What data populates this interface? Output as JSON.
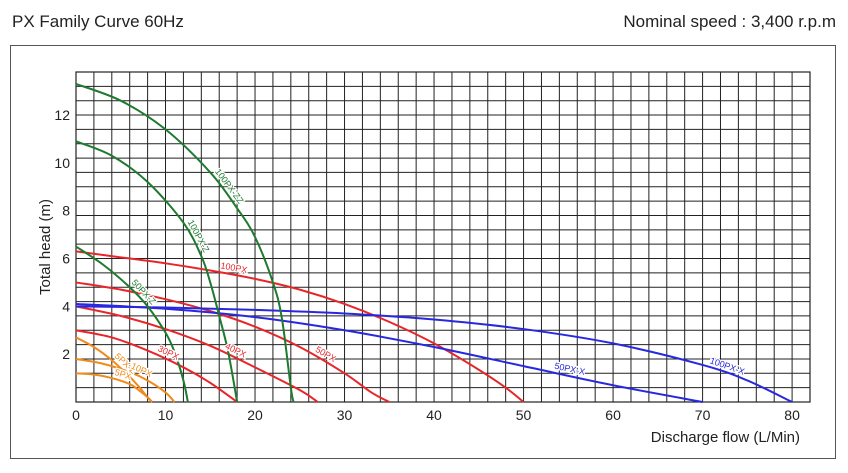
{
  "header": {
    "title": "PX Family Curve 60Hz",
    "speed": "Nominal speed : 3,400 r.p.m"
  },
  "chart_data": {
    "type": "line",
    "title": "PX Family Curve 60Hz",
    "subtitle": "Nominal speed : 3,400 r.p.m",
    "xlabel": "Discharge flow (L/Min)",
    "ylabel": "Total head (m)",
    "xlim": [
      0,
      82
    ],
    "ylim": [
      0,
      13.8
    ],
    "xticks": [
      "0",
      "10",
      "20",
      "30",
      "40",
      "50",
      "60",
      "70",
      "80"
    ],
    "yticks": [
      "2",
      "4",
      "6",
      "8",
      "10",
      "12"
    ],
    "grid": true,
    "series": [
      {
        "name": "5PX",
        "color": "#f08a1c",
        "points": [
          [
            0,
            1.2
          ],
          [
            2,
            1.15
          ],
          [
            4,
            1.0
          ],
          [
            6,
            0.75
          ],
          [
            7,
            0.5
          ],
          [
            8,
            0.2
          ],
          [
            8.5,
            0
          ]
        ]
      },
      {
        "name": "5PX-Z",
        "color": "#f08a1c",
        "points": [
          [
            0,
            2.7
          ],
          [
            2,
            2.3
          ],
          [
            4,
            1.75
          ],
          [
            6,
            1.05
          ],
          [
            7,
            0.65
          ],
          [
            8,
            0.2
          ],
          [
            8.5,
            0
          ]
        ]
      },
      {
        "name": "10PX",
        "color": "#f08a1c",
        "points": [
          [
            0,
            1.8
          ],
          [
            3,
            1.6
          ],
          [
            6,
            1.25
          ],
          [
            8,
            0.9
          ],
          [
            10,
            0.4
          ],
          [
            11,
            0
          ]
        ]
      },
      {
        "name": "30PX",
        "color": "#e8262a",
        "points": [
          [
            0,
            3.0
          ],
          [
            4,
            2.7
          ],
          [
            8,
            2.15
          ],
          [
            12,
            1.45
          ],
          [
            15,
            0.8
          ],
          [
            18,
            0
          ]
        ]
      },
      {
        "name": "40PX",
        "color": "#e8262a",
        "points": [
          [
            0,
            4.0
          ],
          [
            5,
            3.6
          ],
          [
            10,
            3.05
          ],
          [
            15,
            2.35
          ],
          [
            20,
            1.45
          ],
          [
            25,
            0.5
          ],
          [
            27,
            0
          ]
        ]
      },
      {
        "name": "50PX",
        "color": "#e8262a",
        "points": [
          [
            0,
            5.0
          ],
          [
            5,
            4.7
          ],
          [
            10,
            4.3
          ],
          [
            15,
            3.8
          ],
          [
            20,
            3.15
          ],
          [
            25,
            2.3
          ],
          [
            30,
            1.2
          ],
          [
            33,
            0.4
          ],
          [
            35,
            0
          ]
        ]
      },
      {
        "name": "100PX",
        "color": "#e8262a",
        "points": [
          [
            0,
            6.3
          ],
          [
            5,
            6.05
          ],
          [
            10,
            5.8
          ],
          [
            15,
            5.5
          ],
          [
            20,
            5.15
          ],
          [
            25,
            4.7
          ],
          [
            30,
            4.1
          ],
          [
            35,
            3.35
          ],
          [
            40,
            2.45
          ],
          [
            45,
            1.35
          ],
          [
            48,
            0.6
          ],
          [
            50,
            0
          ]
        ]
      },
      {
        "name": "50PX-X",
        "color": "#2828e0",
        "points": [
          [
            0,
            4.1
          ],
          [
            10,
            3.9
          ],
          [
            20,
            3.55
          ],
          [
            30,
            3.0
          ],
          [
            40,
            2.3
          ],
          [
            50,
            1.5
          ],
          [
            60,
            0.7
          ],
          [
            70,
            0
          ]
        ]
      },
      {
        "name": "100PX-X",
        "color": "#2828e0",
        "points": [
          [
            0,
            4.0
          ],
          [
            10,
            3.95
          ],
          [
            20,
            3.85
          ],
          [
            30,
            3.7
          ],
          [
            40,
            3.45
          ],
          [
            50,
            3.05
          ],
          [
            60,
            2.45
          ],
          [
            70,
            1.55
          ],
          [
            75,
            0.9
          ],
          [
            80,
            0
          ]
        ]
      },
      {
        "name": "50PX-Z",
        "color": "#1e7a2e",
        "points": [
          [
            0,
            6.5
          ],
          [
            3,
            5.75
          ],
          [
            6,
            4.8
          ],
          [
            8,
            4.0
          ],
          [
            10,
            2.9
          ],
          [
            11,
            2.1
          ],
          [
            12,
            0.9
          ],
          [
            12.5,
            0
          ]
        ]
      },
      {
        "name": "100PX-Z",
        "color": "#1e7a2e",
        "points": [
          [
            0,
            10.9
          ],
          [
            4,
            10.3
          ],
          [
            8,
            9.2
          ],
          [
            12,
            7.5
          ],
          [
            14,
            6.1
          ],
          [
            15,
            5.0
          ],
          [
            16,
            3.6
          ],
          [
            17,
            2.1
          ],
          [
            18,
            0
          ]
        ]
      },
      {
        "name": "100PX-ZZ",
        "color": "#1e7a2e",
        "points": [
          [
            0,
            13.3
          ],
          [
            5,
            12.6
          ],
          [
            10,
            11.4
          ],
          [
            15,
            9.6
          ],
          [
            18,
            8.1
          ],
          [
            20,
            6.9
          ],
          [
            22,
            5.0
          ],
          [
            23,
            3.5
          ],
          [
            24,
            0.6
          ],
          [
            24.3,
            0
          ]
        ]
      }
    ]
  }
}
